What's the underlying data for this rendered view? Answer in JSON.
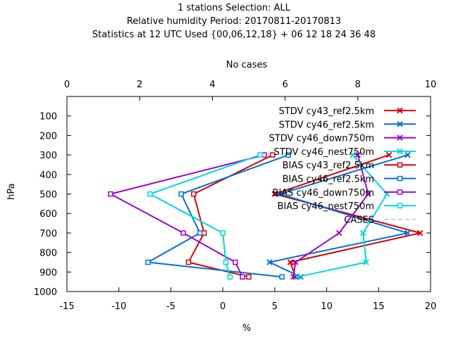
{
  "chart_data": {
    "type": "line",
    "title_lines": [
      "1 stations Selection: ALL",
      "Relative humidity  Period: 20170811-20170813",
      "Statistics at 12 UTC  Used {00,06,12,18} + 06 12 18 24 36 48"
    ],
    "xlabel": "%",
    "x2label": "No cases",
    "ylabel": "hPa",
    "xlim": [
      -15,
      20
    ],
    "x2lim": [
      0,
      10
    ],
    "ylim": [
      1000,
      0
    ],
    "x_ticks": [
      "-15",
      "-10",
      "-5",
      "0",
      "5",
      "10",
      "15",
      "20"
    ],
    "x2_ticks": [
      "0",
      "2",
      "4",
      "6",
      "8",
      "10"
    ],
    "y_ticks": [
      "100",
      "200",
      "300",
      "400",
      "500",
      "600",
      "700",
      "800",
      "900",
      "1000"
    ],
    "grid": false,
    "legend_position": "top-right",
    "series": [
      {
        "name": "STDV cy43_ref2.5km",
        "color": "#dd0000",
        "marker": "x",
        "points": [
          [
            16,
            300
          ],
          [
            5,
            500
          ],
          [
            19,
            700
          ],
          [
            6.5,
            850
          ],
          [
            7,
            925
          ]
        ]
      },
      {
        "name": "STDV cy46_ref2.5km",
        "color": "#0070e0",
        "marker": "x",
        "points": [
          [
            17.8,
            300
          ],
          [
            5.5,
            500
          ],
          [
            17.8,
            700
          ],
          [
            4.5,
            850
          ],
          [
            7.5,
            925
          ]
        ]
      },
      {
        "name": "STDV cy46_down750m",
        "color": "#a000d8",
        "marker": "x",
        "points": [
          [
            13,
            300
          ],
          [
            14,
            500
          ],
          [
            11.2,
            700
          ],
          [
            7,
            850
          ],
          [
            6.8,
            925
          ]
        ]
      },
      {
        "name": "STDV cy46_nest750m",
        "color": "#00d8e0",
        "marker": "x",
        "points": [
          [
            12.5,
            300
          ],
          [
            15.8,
            500
          ],
          [
            13.5,
            700
          ],
          [
            13.8,
            850
          ],
          [
            7.2,
            925
          ]
        ]
      },
      {
        "name": "BIAS cy43_ref2.5km",
        "color": "#dd0000",
        "marker": "square",
        "points": [
          [
            4.8,
            300
          ],
          [
            -2.8,
            500
          ],
          [
            -1.8,
            700
          ],
          [
            -3.3,
            850
          ],
          [
            2.5,
            925
          ]
        ]
      },
      {
        "name": "BIAS cy46_ref2.5km",
        "color": "#0070e0",
        "marker": "square",
        "points": [
          [
            6.3,
            300
          ],
          [
            -4,
            500
          ],
          [
            -2.2,
            700
          ],
          [
            -7.2,
            850
          ],
          [
            5.7,
            925
          ]
        ]
      },
      {
        "name": "BIAS cy46_down750m",
        "color": "#a000d8",
        "marker": "square",
        "points": [
          [
            4,
            300
          ],
          [
            -10.8,
            500
          ],
          [
            -3.8,
            700
          ],
          [
            1.2,
            850
          ],
          [
            1.9,
            925
          ]
        ]
      },
      {
        "name": "BIAS cy46_nest750m",
        "color": "#00d8e0",
        "marker": "square",
        "points": [
          [
            3.6,
            300
          ],
          [
            -7,
            500
          ],
          [
            0,
            700
          ],
          [
            0.3,
            850
          ],
          [
            0.7,
            925
          ]
        ]
      },
      {
        "name": "CASES",
        "color": "#a8a8a8",
        "marker": "none",
        "points": []
      }
    ]
  }
}
